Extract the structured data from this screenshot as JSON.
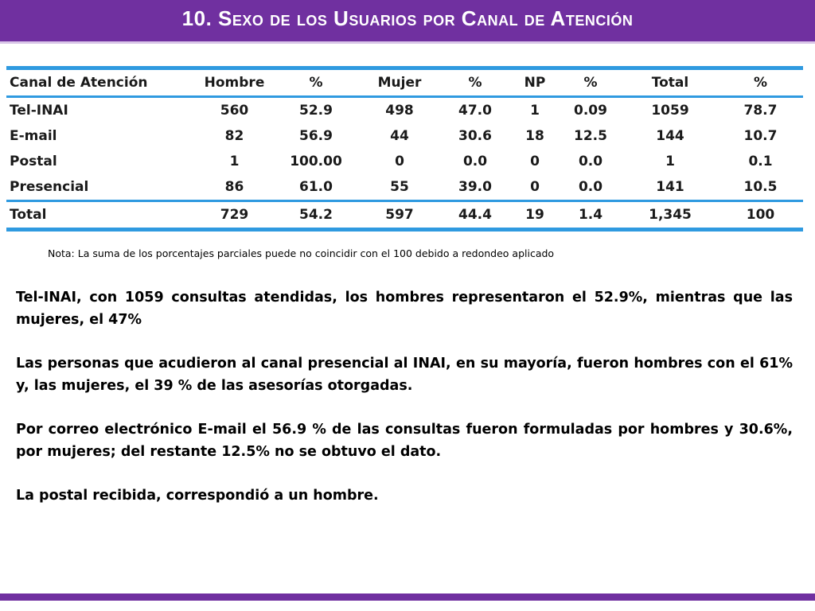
{
  "header": {
    "title": "10. Sexo de los Usuarios por Canal de Atención"
  },
  "table": {
    "columns": [
      "Canal de Atención",
      "Hombre",
      "%",
      "Mujer",
      "%",
      "NP",
      "%",
      "Total",
      "%"
    ],
    "rows": [
      [
        "Tel-INAI",
        "560",
        "52.9",
        "498",
        "47.0",
        "1",
        "0.09",
        "1059",
        "78.7"
      ],
      [
        "E-mail",
        "82",
        "56.9",
        "44",
        "30.6",
        "18",
        "12.5",
        "144",
        "10.7"
      ],
      [
        "Postal",
        "1",
        "100.00",
        "0",
        "0.0",
        "0",
        "0.0",
        "1",
        "0.1"
      ],
      [
        "Presencial",
        "86",
        "61.0",
        "55",
        "39.0",
        "0",
        "0.0",
        "141",
        "10.5"
      ],
      [
        "Total",
        "729",
        "54.2",
        "597",
        "44.4",
        "19",
        "1.4",
        "1,345",
        "100"
      ]
    ]
  },
  "note": "Nota: La suma de los porcentajes parciales puede no coincidir con el 100 debido a redondeo aplicado",
  "paragraphs": [
    "Tel-INAI, con 1059 consultas atendidas, los hombres representaron el 52.9%, mientras que las mujeres, el 47%",
    "Las personas que acudieron al canal presencial al INAI, en su mayoría, fueron hombres con el 61% y, las mujeres, el 39 % de las asesorías otorgadas.",
    "Por correo electrónico E-mail el 56.9 % de las consultas fueron formuladas por hombres y 30.6%, por mujeres; del restante 12.5% no se obtuvo el dato.",
    "La postal recibida, correspondió a un hombre."
  ],
  "colors": {
    "bar": "#7030a0",
    "table_rule": "#2f9ae0"
  }
}
